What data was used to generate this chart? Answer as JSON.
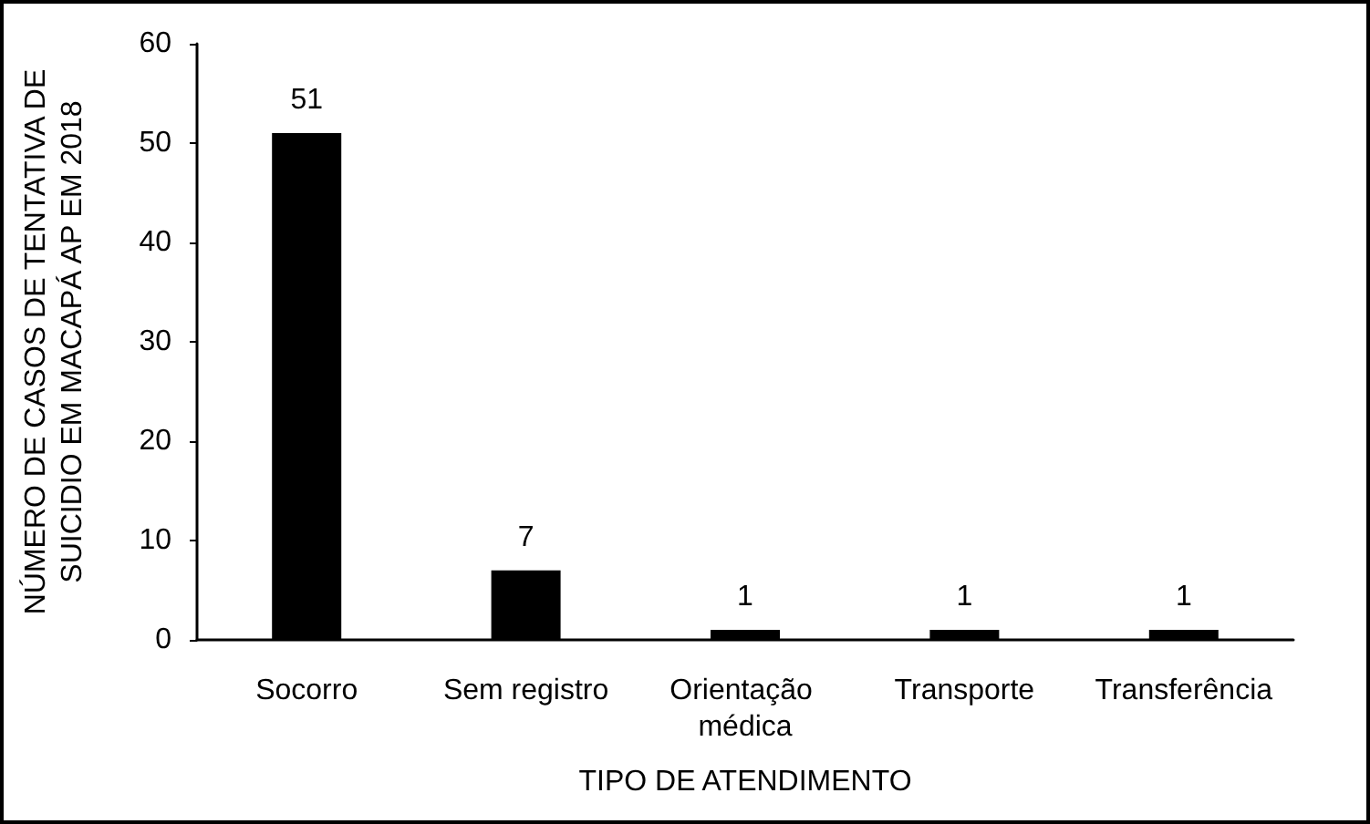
{
  "chart_data": {
    "type": "bar",
    "categories": [
      "Socorro",
      "Sem registro",
      "Orientação médica",
      "Transporte",
      "Transferência"
    ],
    "values": [
      51,
      7,
      1,
      1,
      1
    ],
    "color": "#000000",
    "xlabel": "TIPO DE ATENDIMENTO",
    "ylabel": "NÚMERO DE CASOS DE TENTATIVA DE\nSUICIDIO EM MACAPÁ AP EM 2018",
    "ylim": [
      0,
      60
    ],
    "yticks": [
      0,
      10,
      20,
      30,
      40,
      50,
      60
    ],
    "data_labels": true,
    "grid": false
  }
}
